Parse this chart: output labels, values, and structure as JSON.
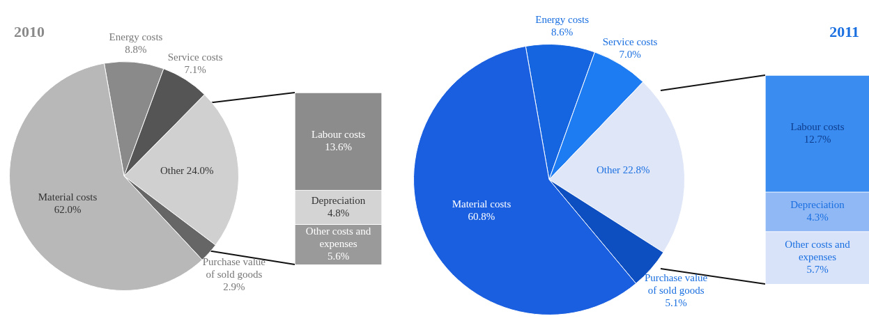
{
  "chart_data": [
    {
      "type": "pie",
      "title": "2010",
      "categories": [
        "Energy costs",
        "Service costs",
        "Other",
        "Purchase value of sold goods",
        "Material costs"
      ],
      "values": [
        8.8,
        7.1,
        24.0,
        2.9,
        62.0
      ],
      "value_labels": [
        "8.8%",
        "7.1%",
        "24.0%",
        "2.9%",
        "62.0%"
      ],
      "colors": [
        "#8a8a8a",
        "#555555",
        "#d0d0d0",
        "#666666",
        "#b8b8b8"
      ]
    },
    {
      "type": "bar",
      "stacked": true,
      "categories": [
        null
      ],
      "series": [
        {
          "name": "Other costs and expenses",
          "color": "#9a9a9a",
          "values": [
            5.6
          ],
          "value_labels": [
            "5.6%"
          ]
        },
        {
          "name": "Depreciation",
          "color": "#d4d4d4",
          "values": [
            4.8
          ],
          "value_labels": [
            "4.8%"
          ]
        },
        {
          "name": "Labour costs",
          "color": "#8c8c8c",
          "values": [
            13.6
          ],
          "value_labels": [
            "13.6%"
          ]
        }
      ]
    },
    {
      "type": "pie",
      "title": "2011",
      "categories": [
        "Energy costs",
        "Service costs",
        "Other",
        "Purchase value of sold goods",
        "Material costs"
      ],
      "values": [
        8.6,
        7.0,
        22.8,
        5.1,
        60.8
      ],
      "value_labels": [
        "8.6%",
        "7.0%",
        "22.8%",
        "5.1%",
        "60.8%"
      ],
      "colors": [
        "#1565e0",
        "#1e7cf2",
        "#dfe6f8",
        "#0d4fc0",
        "#1a5fe0"
      ]
    },
    {
      "type": "bar",
      "stacked": true,
      "categories": [
        null
      ],
      "series": [
        {
          "name": "Other costs and expenses",
          "color": "#d8e3fa",
          "values": [
            5.7
          ],
          "value_labels": [
            "5.7%"
          ]
        },
        {
          "name": "Depreciation",
          "color": "#90b8f5",
          "values": [
            4.3
          ],
          "value_labels": [
            "4.3%"
          ]
        },
        {
          "name": "Labour costs",
          "color": "#3a8cf0",
          "values": [
            12.7
          ],
          "value_labels": [
            "12.7%"
          ]
        }
      ]
    }
  ]
}
